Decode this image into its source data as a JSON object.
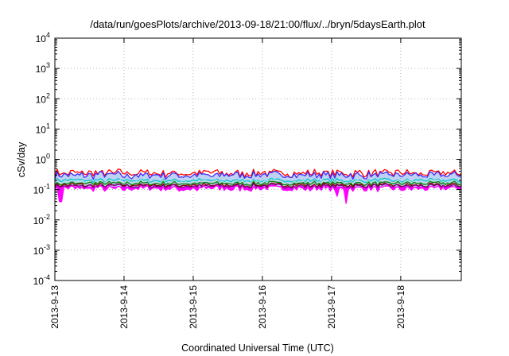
{
  "chart_data": {
    "type": "line",
    "title": "/data/run/goesPlots/archive/2013-09-18/21:00/flux/../bryn/5daysEarth.plot",
    "xlabel": "Coordinated Universal Time (UTC)",
    "ylabel": "cSv/day",
    "yscale": "log",
    "ylim": [
      0.0001,
      10000
    ],
    "y_ticks": [
      {
        "value": 0.0001,
        "base": "10",
        "exp": "-4"
      },
      {
        "value": 0.001,
        "base": "10",
        "exp": "-3"
      },
      {
        "value": 0.01,
        "base": "10",
        "exp": "-2"
      },
      {
        "value": 0.1,
        "base": "10",
        "exp": "-1"
      },
      {
        "value": 1,
        "base": "10",
        "exp": "0"
      },
      {
        "value": 10,
        "base": "10",
        "exp": "1"
      },
      {
        "value": 100,
        "base": "10",
        "exp": "2"
      },
      {
        "value": 1000,
        "base": "10",
        "exp": "3"
      },
      {
        "value": 10000,
        "base": "10",
        "exp": "4"
      }
    ],
    "xlim": [
      "2013-09-13",
      "2013-09-18 21:00"
    ],
    "x_ticks": [
      "2013-9-13",
      "2013-9-14",
      "2013-9-15",
      "2013-9-16",
      "2013-9-17",
      "2013-9-18"
    ],
    "grid": true,
    "legend": "none",
    "series": [
      {
        "color": "#ff0000",
        "level": 0.35,
        "role": "upper envelope"
      },
      {
        "color": "#3a2bff",
        "level": 0.3,
        "role": "upper band"
      },
      {
        "color": "#00c8c8",
        "level": 0.2
      },
      {
        "color": "#b0e0e0",
        "level": 0.18
      },
      {
        "color": "#008000",
        "level": 0.16
      },
      {
        "color": "#8b0000",
        "level": 0.14
      },
      {
        "color": "#800080",
        "level": 0.13
      },
      {
        "color": "#ff00ff",
        "level": 0.11,
        "role": "lower band"
      }
    ],
    "dips": [
      {
        "date": "2013-09-13 02:00",
        "value": 0.04
      },
      {
        "date": "2013-09-17 02:00",
        "value": 0.06
      },
      {
        "date": "2013-09-17 05:00",
        "value": 0.035
      }
    ]
  }
}
